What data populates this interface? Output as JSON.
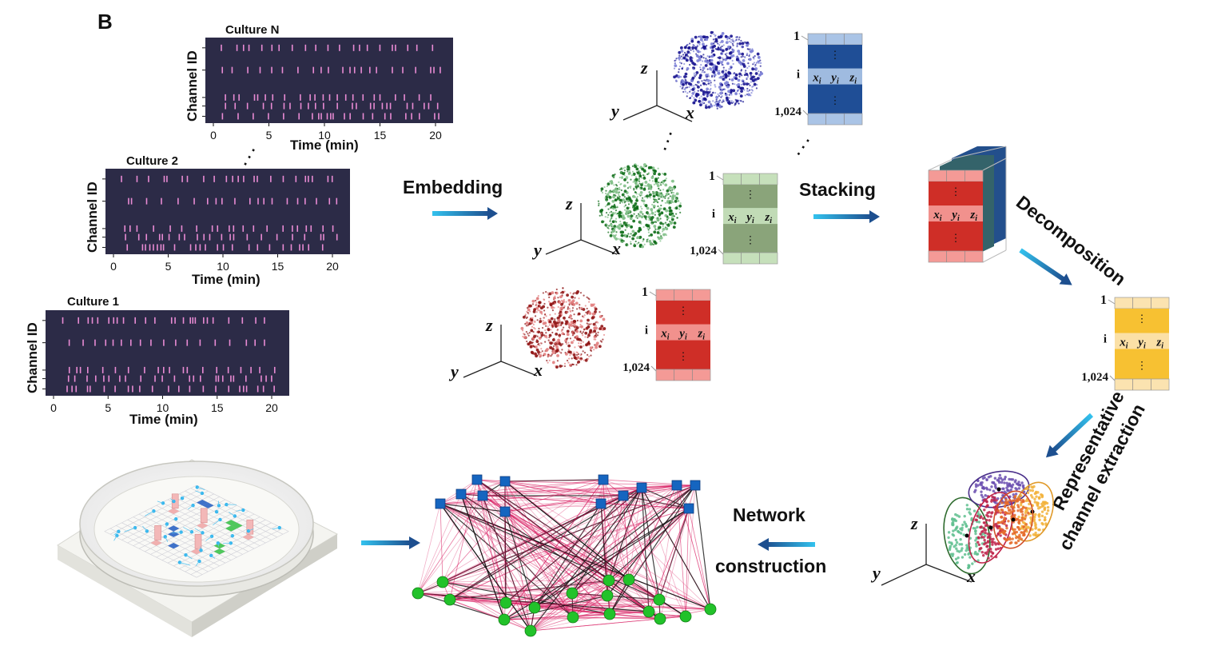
{
  "panel_label": "B",
  "rasters": [
    {
      "title": "Culture N",
      "ylabel": "Channel ID",
      "xlabel": "Time (min)",
      "ticks": [
        "0",
        "5",
        "10",
        "15",
        "20"
      ]
    },
    {
      "title": "Culture 2",
      "ylabel": "Channel ID",
      "xlabel": "Time (min)",
      "ticks": [
        "0",
        "5",
        "10",
        "15",
        "20"
      ]
    },
    {
      "title": "Culture 1",
      "ylabel": "Channel ID",
      "xlabel": "Time (min)",
      "ticks": [
        "0",
        "5",
        "10",
        "15",
        "20"
      ]
    }
  ],
  "steps": {
    "embedding": "Embedding",
    "stacking": "Stacking",
    "decomposition": "Decomposition",
    "representative": [
      "Representative",
      "channel extraction"
    ],
    "network": [
      "Network",
      "construction"
    ]
  },
  "matrix": {
    "row_first": "1",
    "row_i": "i",
    "row_last": "1,024",
    "vdots": "⋮",
    "cols": [
      "x",
      "y",
      "z"
    ],
    "sub": "i"
  },
  "axes": {
    "x": "x",
    "y": "y",
    "z": "z"
  },
  "ellipsis": ". . .",
  "colors": {
    "raster_bg": "#2c2b47",
    "spike": "#e98bd4",
    "blue_matrix": "#1f4e96",
    "green_matrix": "#8aa47a",
    "red_matrix": "#cf2e27",
    "yellow_matrix": "#f7c132",
    "arrow": "#2aa0d8",
    "network_edge_pink": "#d81b60",
    "network_edge_dark": "#111111",
    "node_blue": "#1565c0",
    "node_green": "#22c22a"
  }
}
